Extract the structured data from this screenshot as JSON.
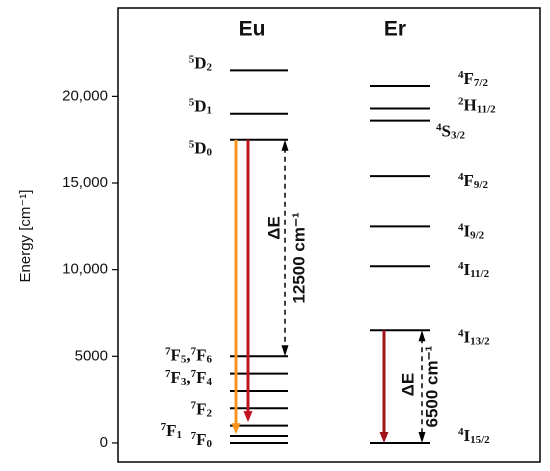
{
  "chart_data": {
    "type": "energy-level",
    "ylabel": "Energy [cm⁻¹]",
    "ylim": [
      -1100,
      25100
    ],
    "yticks": [
      0,
      5000,
      {
        "value": 10000,
        "label": "10,000"
      },
      {
        "value": 15000,
        "label": "15,000"
      },
      {
        "value": 20000,
        "label": "20,000"
      }
    ],
    "columns": [
      {
        "name": "Eu",
        "levels": [
          {
            "energy": 21500,
            "label": [
              {
                "sup": "5",
                "base": "D",
                "sub": "2"
              }
            ]
          },
          {
            "energy": 19000,
            "label": [
              {
                "sup": "5",
                "base": "D",
                "sub": "1"
              }
            ]
          },
          {
            "energy": 17500,
            "label": [
              {
                "sup": "5",
                "base": "D",
                "sub": "0"
              }
            ]
          },
          {
            "energy": 5000,
            "separator": ",",
            "label": [
              {
                "sup": "7",
                "base": "F",
                "sub": "5"
              },
              {
                "sup": "7",
                "base": "F",
                "sub": "6"
              }
            ]
          },
          {
            "energy": 4000
          },
          {
            "energy": 3000,
            "separator": ",",
            "label": [
              {
                "sup": "7",
                "base": "F",
                "sub": "3"
              },
              {
                "sup": "7",
                "base": "F",
                "sub": "4"
              }
            ]
          },
          {
            "energy": 2000
          },
          {
            "energy": 1000,
            "label": [
              {
                "sup": "7",
                "base": "F",
                "sub": "2"
              }
            ]
          },
          {
            "energy": 400,
            "label": [
              {
                "sup": "7",
                "base": "F",
                "sub": "1"
              }
            ]
          },
          {
            "energy": 0,
            "label": [
              {
                "sup": "7",
                "base": "F",
                "sub": "0"
              }
            ]
          }
        ],
        "transitions": [
          {
            "from": 17500,
            "to": 500,
            "color": "#f7941d"
          },
          {
            "from": 17500,
            "to": 1200,
            "color": "#c1121f"
          }
        ],
        "gap": {
          "from": 17500,
          "to": 5000,
          "symbol": "ΔE",
          "label": "12500 cm⁻¹"
        }
      },
      {
        "name": "Er",
        "levels": [
          {
            "energy": 20600,
            "label": [
              {
                "sup": "4",
                "base": "F",
                "sub": "7/2"
              }
            ]
          },
          {
            "energy": 19300,
            "label": [
              {
                "sup": "2",
                "base": "H",
                "sub": "11/2"
              }
            ]
          },
          {
            "energy": 18600,
            "label": [
              {
                "sup": "4",
                "base": "S",
                "sub": "3/2"
              }
            ]
          },
          {
            "energy": 15400,
            "label": [
              {
                "sup": "4",
                "base": "F",
                "sub": "9/2"
              }
            ]
          },
          {
            "energy": 12500,
            "label": [
              {
                "sup": "4",
                "base": "I",
                "sub": "9/2"
              }
            ]
          },
          {
            "energy": 10200,
            "label": [
              {
                "sup": "4",
                "base": "I",
                "sub": "11/2"
              }
            ]
          },
          {
            "energy": 6500,
            "label": [
              {
                "sup": "4",
                "base": "I",
                "sub": "13/2"
              }
            ]
          },
          {
            "energy": 0,
            "label": [
              {
                "sup": "4",
                "base": "I",
                "sub": "15/2"
              }
            ]
          }
        ],
        "transitions": [
          {
            "from": 6500,
            "to": 0,
            "color": "#a3121a"
          }
        ],
        "gap": {
          "from": 6500,
          "to": 0,
          "symbol": "ΔE",
          "label": "6500 cm⁻¹"
        }
      }
    ]
  }
}
